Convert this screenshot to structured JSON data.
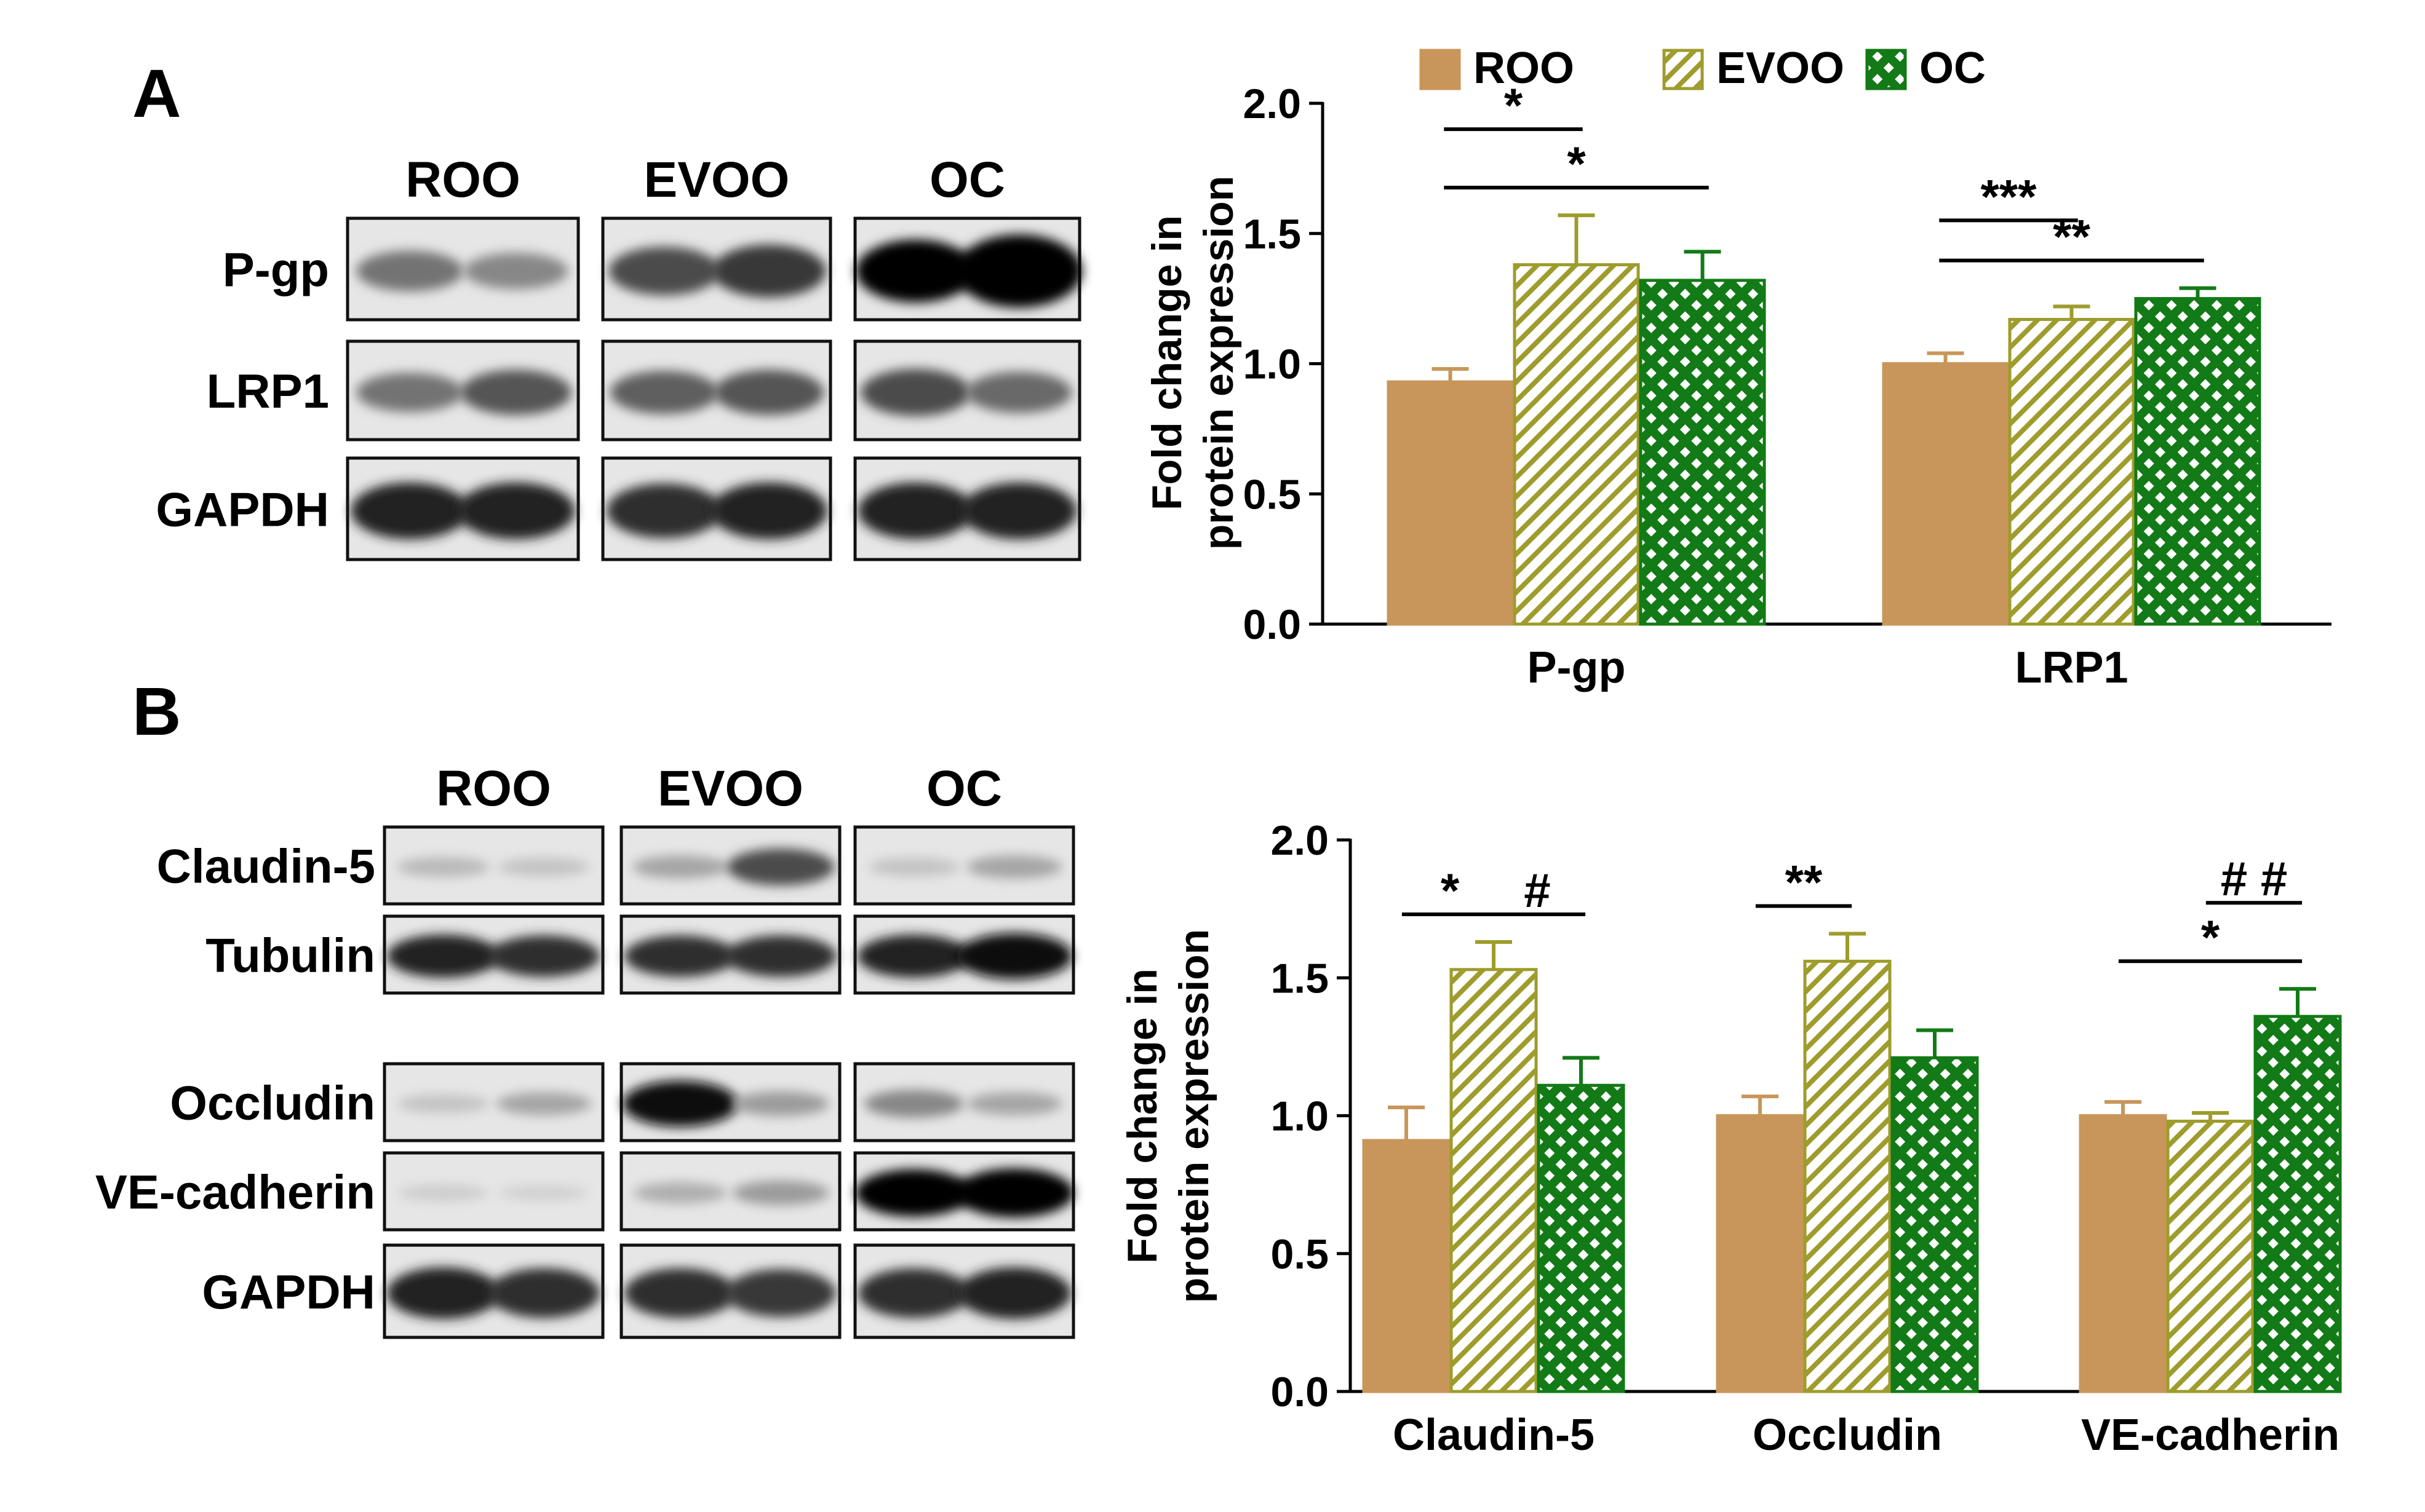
{
  "panel_labels": [
    "A",
    "B"
  ],
  "colors": {
    "ROO": "#c8965a",
    "EVOO": "#9e9c2c",
    "OC": "#127a16",
    "axis": "#000000"
  },
  "blots": {
    "A": {
      "group_labels": [
        "ROO",
        "EVOO",
        "OC"
      ],
      "rows": [
        {
          "label": "P-gp",
          "bands": [
            [
              0.55,
              0.45
            ],
            [
              0.75,
              0.85
            ],
            [
              1.1,
              1.35
            ]
          ]
        },
        {
          "label": "LRP1",
          "bands": [
            [
              0.55,
              0.7
            ],
            [
              0.65,
              0.7
            ],
            [
              0.75,
              0.6
            ]
          ]
        },
        {
          "label": "GAPDH",
          "bands": [
            [
              0.95,
              0.95
            ],
            [
              0.9,
              0.95
            ],
            [
              0.95,
              0.95
            ]
          ]
        }
      ]
    },
    "B": {
      "group_labels": [
        "ROO",
        "EVOO",
        "OC"
      ],
      "rows": [
        {
          "label": "Claudin-5",
          "bands": [
            [
              0.2,
              0.15
            ],
            [
              0.3,
              0.75
            ],
            [
              0.15,
              0.3
            ]
          ]
        },
        {
          "label": "Tubulin",
          "bands": [
            [
              0.95,
              0.9
            ],
            [
              0.9,
              0.9
            ],
            [
              0.95,
              1.05
            ]
          ]
        },
        {
          "label": "Occludin",
          "bands": [
            [
              0.15,
              0.3
            ],
            [
              1.05,
              0.35
            ],
            [
              0.45,
              0.3
            ]
          ]
        },
        {
          "label": "VE-cadherin",
          "bands": [
            [
              0.1,
              0.08
            ],
            [
              0.25,
              0.35
            ],
            [
              1.1,
              1.15
            ]
          ]
        },
        {
          "label": "GAPDH",
          "bands": [
            [
              0.95,
              0.9
            ],
            [
              0.9,
              0.85
            ],
            [
              0.9,
              0.95
            ]
          ]
        }
      ]
    }
  },
  "chart_data": [
    {
      "type": "bar",
      "panel": "A",
      "title": "",
      "xlabel": "",
      "ylabel": "Fold change in protein expression",
      "ylim": [
        0,
        2.0
      ],
      "yticks": [
        "0.0",
        "0.5",
        "1.0",
        "1.5",
        "2.0"
      ],
      "categories": [
        "P-gp",
        "LRP1"
      ],
      "series": [
        {
          "name": "ROO",
          "values": [
            0.93,
            1.0
          ],
          "errors": [
            0.05,
            0.04
          ]
        },
        {
          "name": "EVOO",
          "values": [
            1.38,
            1.17
          ],
          "errors": [
            0.19,
            0.05
          ]
        },
        {
          "name": "OC",
          "values": [
            1.32,
            1.25
          ],
          "errors": [
            0.11,
            0.04
          ]
        }
      ],
      "legend": {
        "entries": [
          "ROO",
          "EVOO",
          "OC"
        ],
        "placement": "top"
      },
      "significance": [
        {
          "label": "*",
          "category": 0,
          "from": 0,
          "to": 1,
          "level": 1
        },
        {
          "label": "*",
          "category": 0,
          "from": 0,
          "to": 2,
          "level": 0
        },
        {
          "label": "***",
          "category": 1,
          "from": 0,
          "to": 1,
          "level": 1
        },
        {
          "label": "**",
          "category": 1,
          "from": 0,
          "to": 2,
          "level": 0
        }
      ]
    },
    {
      "type": "bar",
      "panel": "B",
      "title": "",
      "xlabel": "",
      "ylabel": "Fold change in protein expression",
      "ylim": [
        0,
        2.0
      ],
      "yticks": [
        "0.0",
        "0.5",
        "1.0",
        "1.5",
        "2.0"
      ],
      "categories": [
        "Claudin-5",
        "Occludin",
        "VE-cadherin"
      ],
      "series": [
        {
          "name": "ROO",
          "values": [
            0.91,
            1.0,
            1.0
          ],
          "errors": [
            0.12,
            0.07,
            0.05
          ]
        },
        {
          "name": "EVOO",
          "values": [
            1.53,
            1.56,
            0.98
          ],
          "errors": [
            0.1,
            0.1,
            0.03
          ]
        },
        {
          "name": "OC",
          "values": [
            1.11,
            1.21,
            1.36
          ],
          "errors": [
            0.1,
            0.1,
            0.1
          ]
        }
      ],
      "legend": {
        "entries": [],
        "placement": "none"
      },
      "significance": [
        {
          "label": "*",
          "category": 0,
          "from": 0,
          "to": 1,
          "level": 0
        },
        {
          "label": "#",
          "category": 0,
          "from": 1,
          "to": 2,
          "level": 0
        },
        {
          "label": "**",
          "category": 1,
          "from": 0,
          "to": 1,
          "level": 0
        },
        {
          "label": "# #",
          "category": 2,
          "from": 1,
          "to": 2,
          "level": 1
        },
        {
          "label": "*",
          "category": 2,
          "from": 0,
          "to": 2,
          "level": 0
        }
      ]
    }
  ]
}
